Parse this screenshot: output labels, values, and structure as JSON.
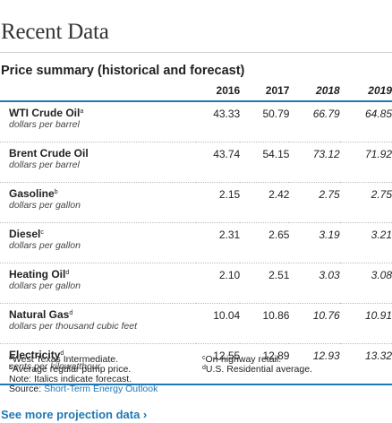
{
  "section_title": "Recent Data",
  "table_title": "Price summary (historical and forecast)",
  "years": [
    "2016",
    "2017",
    "2018",
    "2019"
  ],
  "rows": [
    {
      "name": "WTI Crude Oil",
      "note": "a",
      "unit": "dollars per barrel",
      "values": [
        "43.33",
        "50.79",
        "66.79",
        "64.85"
      ]
    },
    {
      "name": "Brent Crude Oil",
      "note": "",
      "unit": "dollars per barrel",
      "values": [
        "43.74",
        "54.15",
        "73.12",
        "71.92"
      ]
    },
    {
      "name": "Gasoline",
      "note": "b",
      "unit": "dollars per gallon",
      "values": [
        "2.15",
        "2.42",
        "2.75",
        "2.75"
      ]
    },
    {
      "name": "Diesel",
      "note": "c",
      "unit": "dollars per gallon",
      "values": [
        "2.31",
        "2.65",
        "3.19",
        "3.21"
      ]
    },
    {
      "name": "Heating Oil",
      "note": "d",
      "unit": "dollars per gallon",
      "values": [
        "2.10",
        "2.51",
        "3.03",
        "3.08"
      ]
    },
    {
      "name": "Natural Gas",
      "note": "d",
      "unit": "dollars per thousand cubic feet",
      "values": [
        "10.04",
        "10.86",
        "10.76",
        "10.91"
      ]
    },
    {
      "name": "Electricity",
      "note": "d",
      "unit": "cents per kilowatthour",
      "values": [
        "12.55",
        "12.89",
        "12.93",
        "13.32"
      ]
    }
  ],
  "footnotes": {
    "a": {
      "mark": "a",
      "text": "West Texas Intermediate."
    },
    "b": {
      "mark": "b",
      "text": "Average regular pump price."
    },
    "c": {
      "mark": "c",
      "text": "On-highway retail."
    },
    "d": {
      "mark": "d",
      "text": "U.S. Residential average."
    },
    "italics_note": "Note: Italics indicate forecast.",
    "source_prefix": "Source: ",
    "source_link": "Short-Term Energy Outlook"
  },
  "more_link": "See more projection data ›",
  "colors": {
    "accent": "#1f78b4",
    "text": "#222222"
  }
}
